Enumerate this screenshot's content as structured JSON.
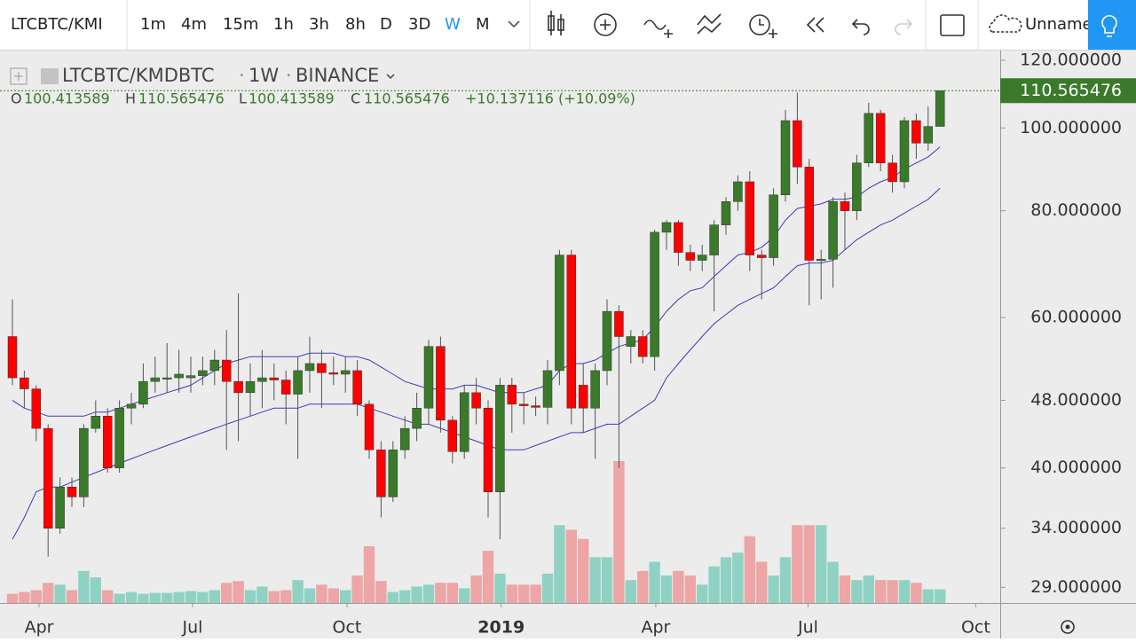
{
  "toolbar": {
    "symbol": "LTCBTC/KMI",
    "intervals": [
      "1m",
      "4m",
      "15m",
      "1h",
      "3h",
      "8h",
      "D",
      "3D",
      "W",
      "M"
    ],
    "layout_name": "Unname"
  },
  "chart_data": {
    "type": "candlestick",
    "header": {
      "symbol": "LTCBTC/KMDBTC",
      "separator": "·",
      "interval": "1W",
      "exchange": "BINANCE"
    },
    "ohlc_legend": [
      {
        "label": "O",
        "value": "100.413589"
      },
      {
        "label": "H",
        "value": "110.565476"
      },
      {
        "label": "L",
        "value": "100.413589"
      },
      {
        "label": "C",
        "value": "110.565476"
      }
    ],
    "change": "+10.137116 (+10.09%)",
    "up_color": "#3a7a2a",
    "down_color": "#ff0000",
    "volume_up_color": "#8fd2c3",
    "volume_down_color": "#eda5a5",
    "line_color": "#3c3cb4",
    "last_price_color": "#3a7a2a",
    "log_scale": true,
    "ylim": [
      27.8,
      122.9
    ],
    "yticks": [
      {
        "value": 29,
        "label": "29.000000"
      },
      {
        "value": 34,
        "label": "34.000000"
      },
      {
        "value": 40,
        "label": "40.000000"
      },
      {
        "value": 48,
        "label": "48.000000"
      },
      {
        "value": 60,
        "label": "60.000000"
      },
      {
        "value": 80,
        "label": "80.000000"
      },
      {
        "value": 100,
        "label": "100.000000"
      },
      {
        "value": 120,
        "label": "120.000000"
      }
    ],
    "xlim": [
      -1.045,
      83.06
    ],
    "xticks": [
      {
        "value": 2.24,
        "label": "Apr"
      },
      {
        "value": 15.15,
        "label": "Jul"
      },
      {
        "value": 28.13,
        "label": "Oct"
      },
      {
        "value": 41.1,
        "label": "2019"
      },
      {
        "value": 54.1,
        "label": "Apr"
      },
      {
        "value": 66.9,
        "label": "Jul"
      },
      {
        "value": 81.0,
        "label": "Oct"
      }
    ],
    "open": [
      57,
      51,
      49.5,
      44.5,
      34,
      38,
      37,
      44.5,
      46,
      40,
      47,
      47.5,
      50.5,
      51,
      51,
      51,
      51.3,
      52,
      53.5,
      50.5,
      49,
      50.5,
      51,
      50.7,
      48.8,
      52,
      53,
      51.7,
      51.5,
      52,
      47.5,
      42,
      37,
      42,
      44.5,
      47,
      55.5,
      45.5,
      41.8,
      49,
      47,
      37.5,
      50,
      47.5,
      47.3,
      47.1,
      52,
      71,
      50,
      47,
      52,
      61,
      55.5,
      57,
      54,
      75.5,
      77.5,
      71.5,
      70,
      71,
      77,
      82,
      86.5,
      71,
      70.5,
      83.5,
      102,
      90,
      70,
      70.2,
      82,
      80,
      91,
      104,
      91,
      86.5,
      102,
      96,
      100.413589
    ],
    "high": [
      63,
      52,
      50,
      45,
      39,
      39,
      45,
      48,
      47,
      48,
      49,
      53,
      54,
      56,
      55,
      54,
      54,
      55,
      58,
      64,
      53,
      55,
      53,
      52,
      54,
      57,
      55,
      54,
      54,
      53.5,
      48,
      43,
      43,
      46,
      49,
      56.5,
      57,
      46,
      50,
      51,
      48,
      51,
      51,
      49,
      48.5,
      53.5,
      72,
      72,
      53,
      53,
      63,
      62,
      58,
      58,
      76,
      78,
      78,
      73,
      73,
      78,
      83,
      88,
      89,
      72,
      85,
      105,
      110,
      92,
      72,
      83,
      84,
      93,
      107,
      105,
      93,
      103,
      104,
      106,
      110.565476
    ],
    "low": [
      50,
      47,
      43,
      31.5,
      33.5,
      36,
      36,
      44,
      39.5,
      39.5,
      45,
      47,
      49,
      49,
      49,
      49,
      50,
      50,
      42,
      43,
      46,
      47,
      48,
      45,
      41,
      49,
      47,
      50,
      49,
      46,
      41,
      35,
      36.5,
      41,
      43,
      45,
      44,
      40.5,
      41,
      45,
      35,
      33,
      44,
      45,
      46,
      45,
      50,
      45,
      44,
      41,
      50,
      40,
      53,
      53,
      52,
      72,
      69,
      68,
      68,
      61,
      75,
      80,
      68,
      63,
      69,
      82,
      86,
      62,
      63,
      65,
      72,
      78,
      90,
      89,
      84,
      85,
      92,
      94,
      100.413589
    ],
    "close": [
      51,
      49.5,
      44.5,
      34,
      38,
      37,
      44.5,
      46,
      40,
      47,
      47.5,
      50.5,
      51,
      51,
      51.5,
      51.3,
      52,
      53.5,
      50.5,
      49,
      50.5,
      51,
      50.7,
      48.8,
      52,
      53,
      51.7,
      51.5,
      52,
      47.5,
      42,
      37,
      42,
      44.5,
      47,
      55.5,
      45.5,
      41.8,
      49,
      47,
      37.5,
      50,
      47.5,
      47.3,
      47.1,
      52,
      71,
      47,
      47,
      52,
      61,
      57,
      57,
      54,
      75.5,
      77.5,
      71.5,
      70,
      71,
      77,
      82,
      86.5,
      71,
      70.5,
      83.5,
      102,
      90,
      70,
      70.2,
      82,
      80,
      91,
      104,
      91,
      86.5,
      102,
      96,
      100.4,
      110.565476
    ],
    "volume": [
      10,
      12,
      14,
      22,
      20,
      14,
      35,
      28,
      14,
      10,
      12,
      10,
      11,
      11,
      12,
      13,
      12,
      14,
      22,
      24,
      14,
      18,
      13,
      14,
      25,
      16,
      20,
      16,
      14,
      30,
      62,
      24,
      12,
      14,
      18,
      20,
      22,
      22,
      16,
      30,
      57,
      32,
      20,
      20,
      20,
      32,
      85,
      80,
      70,
      50,
      50,
      155,
      25,
      35,
      45,
      30,
      35,
      30,
      20,
      40,
      50,
      55,
      73,
      45,
      30,
      50,
      85,
      85,
      85,
      45,
      30,
      25,
      30,
      25,
      25,
      25,
      22,
      15,
      15
    ],
    "lines": [
      {
        "values": [
          48,
          47,
          46.5,
          46,
          46,
          46,
          46,
          46.5,
          46.5,
          47,
          47.5,
          48,
          48.5,
          49,
          49.5,
          50,
          51,
          52,
          53,
          53.5,
          54,
          54,
          54,
          54,
          54,
          54.5,
          54.5,
          54.5,
          54,
          54,
          53.5,
          52.5,
          51.5,
          50.5,
          50,
          49.5,
          49.5,
          49.5,
          50,
          50,
          49.5,
          49,
          49,
          49,
          49.5,
          50,
          52,
          53,
          53,
          53.5,
          54.5,
          55.5,
          56,
          56.5,
          58.5,
          61,
          63,
          64.5,
          65,
          67,
          69,
          71,
          71.5,
          72.5,
          74.5,
          78,
          80.5,
          81,
          81.5,
          82.5,
          82.5,
          83,
          85,
          86.5,
          87.5,
          89.5,
          91,
          92.5,
          95
        ]
      },
      {
        "values": [
          33,
          35,
          37.5,
          38,
          38,
          38.5,
          39,
          39.5,
          40,
          40.5,
          41,
          41.5,
          42,
          42.5,
          43,
          43.5,
          44,
          44.5,
          45,
          45.5,
          46,
          46.5,
          47,
          47,
          47,
          47.5,
          47.5,
          47.5,
          47.5,
          47.5,
          47,
          46.5,
          46,
          45.5,
          45,
          45,
          44.5,
          44,
          43.5,
          43,
          42.5,
          42,
          42,
          42,
          42.5,
          43,
          43.5,
          44,
          44,
          44.5,
          45,
          45,
          46,
          47,
          48,
          51,
          53,
          55,
          57,
          59,
          60.5,
          62,
          63,
          64,
          65,
          67,
          69,
          69.5,
          69.5,
          70,
          72,
          74,
          75.5,
          77,
          78,
          79.5,
          81,
          82.5,
          85
        ]
      }
    ]
  }
}
